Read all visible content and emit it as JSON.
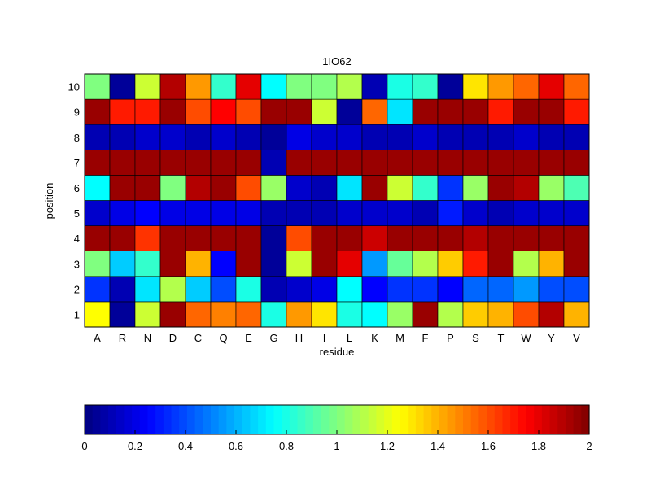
{
  "chart_data": {
    "type": "heatmap",
    "title": "1IO62",
    "xlabel": "residue",
    "ylabel": "position",
    "x_categories": [
      "A",
      "R",
      "N",
      "D",
      "C",
      "Q",
      "E",
      "G",
      "H",
      "I",
      "L",
      "K",
      "M",
      "F",
      "P",
      "S",
      "T",
      "W",
      "Y",
      "V"
    ],
    "y_categories": [
      "1",
      "2",
      "3",
      "4",
      "5",
      "6",
      "7",
      "8",
      "9",
      "10"
    ],
    "values": [
      [
        1.25,
        0.05,
        1.15,
        1.95,
        1.55,
        1.5,
        1.55,
        0.8,
        1.45,
        1.3,
        0.8,
        0.75,
        1.05,
        1.95,
        1.1,
        1.35,
        1.4,
        1.6,
        1.9,
        1.4
      ],
      [
        0.35,
        0.1,
        0.7,
        1.1,
        0.65,
        0.4,
        0.8,
        0.1,
        0.15,
        0.2,
        0.75,
        0.25,
        0.35,
        0.35,
        0.25,
        0.45,
        0.45,
        0.55,
        0.4,
        0.4
      ],
      [
        1.0,
        0.65,
        0.85,
        1.95,
        1.4,
        0.25,
        1.95,
        0.05,
        1.15,
        1.95,
        1.8,
        0.55,
        0.95,
        1.1,
        1.35,
        1.7,
        1.95,
        1.1,
        1.4,
        1.95
      ],
      [
        1.95,
        1.95,
        1.65,
        1.95,
        1.95,
        1.95,
        1.95,
        0.05,
        1.6,
        1.95,
        1.95,
        1.85,
        1.95,
        1.95,
        1.95,
        1.9,
        1.95,
        1.95,
        1.95,
        1.95
      ],
      [
        0.15,
        0.2,
        0.25,
        0.2,
        0.2,
        0.2,
        0.2,
        0.1,
        0.1,
        0.1,
        0.15,
        0.15,
        0.15,
        0.1,
        0.3,
        0.15,
        0.1,
        0.15,
        0.15,
        0.15
      ],
      [
        0.75,
        1.95,
        1.95,
        1.0,
        1.9,
        1.95,
        1.6,
        1.05,
        0.15,
        0.1,
        0.7,
        1.95,
        1.15,
        0.85,
        0.35,
        1.05,
        1.95,
        1.9,
        1.05,
        0.9
      ],
      [
        1.95,
        1.95,
        1.95,
        1.95,
        1.95,
        1.95,
        1.95,
        0.1,
        1.95,
        1.95,
        1.95,
        1.95,
        1.95,
        1.95,
        1.95,
        1.95,
        1.95,
        1.95,
        1.95,
        1.95
      ],
      [
        0.1,
        0.1,
        0.15,
        0.15,
        0.1,
        0.15,
        0.1,
        0.05,
        0.2,
        0.15,
        0.15,
        0.1,
        0.1,
        0.15,
        0.1,
        0.1,
        0.1,
        0.15,
        0.1,
        0.1
      ],
      [
        1.95,
        1.7,
        1.7,
        1.95,
        1.6,
        1.75,
        1.6,
        1.95,
        1.95,
        1.15,
        0.05,
        1.55,
        0.7,
        1.95,
        1.95,
        1.95,
        1.7,
        1.95,
        1.95,
        1.7
      ],
      [
        1.0,
        0.05,
        1.15,
        1.9,
        1.45,
        0.85,
        1.8,
        0.75,
        1.0,
        1.0,
        1.1,
        0.1,
        0.8,
        0.85,
        0.05,
        1.3,
        1.45,
        1.55,
        1.8,
        1.55
      ]
    ],
    "colorbar": {
      "range": [
        0,
        2
      ],
      "ticks": [
        "0",
        "0.2",
        "0.4",
        "0.6",
        "0.8",
        "1",
        "1.2",
        "1.4",
        "1.6",
        "1.8",
        "2"
      ],
      "colormap": "jet",
      "placement": "bottom"
    }
  }
}
